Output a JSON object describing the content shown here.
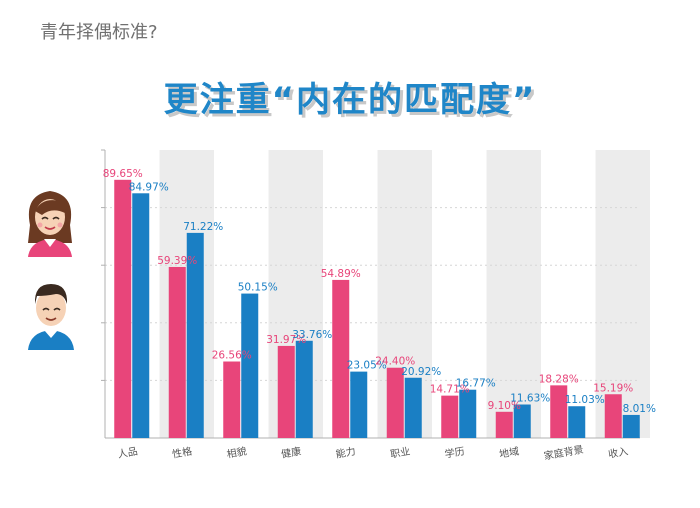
{
  "page": {
    "subtitle": "青年择偶标准?",
    "title": "更注重“内在的匹配度”"
  },
  "legend": {
    "female": "female-avatar-icon",
    "male": "male-avatar-icon"
  },
  "colors": {
    "female": "#e8457a",
    "male": "#1a7fc4",
    "label_female": "#e8457a",
    "label_male": "#1a7fc4",
    "stripe": "#ececec"
  },
  "chart_data": {
    "type": "bar",
    "title": "更注重“内在的匹配度”",
    "categories": [
      "人品",
      "性格",
      "相貌",
      "健康",
      "能力",
      "职业",
      "学历",
      "地域",
      "家庭背景",
      "收入"
    ],
    "series": [
      {
        "name": "female",
        "values": [
          89.65,
          59.39,
          26.56,
          31.97,
          54.89,
          24.4,
          14.71,
          9.1,
          18.28,
          15.19
        ],
        "labels": [
          "89.65%",
          "59.39%",
          "26.56%",
          "31.97%",
          "54.89%",
          "24.40%",
          "14.71%",
          "9.10%",
          "18.28%",
          "15.19%"
        ]
      },
      {
        "name": "male",
        "values": [
          84.97,
          71.22,
          50.15,
          33.76,
          23.05,
          20.92,
          16.77,
          11.63,
          11.03,
          8.01
        ],
        "labels": [
          "84.97%",
          "71.22%",
          "50.15%",
          "33.76%",
          "23.05%",
          "20.92%",
          "16.77%",
          "11.63%",
          "11.03%",
          "8.01%"
        ]
      }
    ],
    "ylim": [
      0,
      100
    ],
    "grid": true,
    "xlabel": "",
    "ylabel": ""
  }
}
